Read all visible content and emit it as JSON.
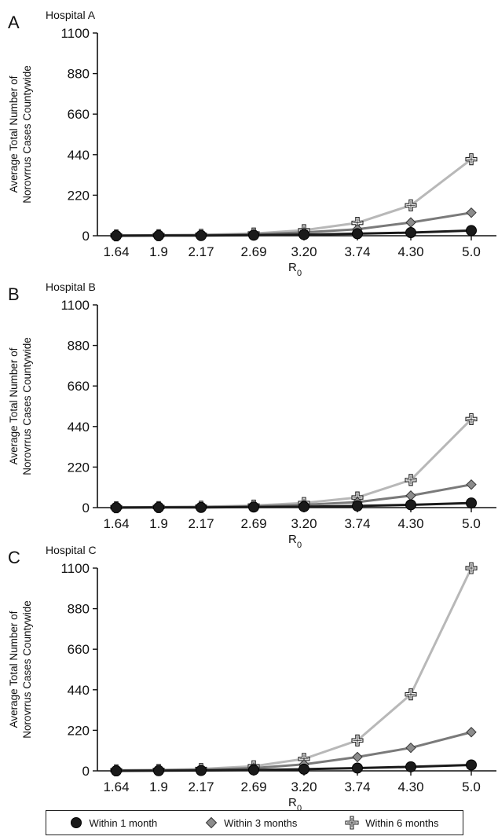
{
  "chart_data": [
    {
      "type": "line",
      "panel_letter": "A",
      "title": "Hospital A",
      "xlabel_main": "R",
      "xlabel_sub": "0",
      "ylabel": [
        "Average Total Number of",
        "Norovrrus Cases Countywide"
      ],
      "categories": [
        "1.64",
        "1.9",
        "2.17",
        "2.69",
        "3.20",
        "3.74",
        "4.30",
        "5.0"
      ],
      "ylim": [
        0,
        1100
      ],
      "yticks": [
        "0",
        "220",
        "440",
        "660",
        "880",
        "1100"
      ],
      "grid": false,
      "series": [
        {
          "name": "Within 6 months",
          "marker": "cross",
          "color": "#b8b8b8",
          "values": [
            2,
            3,
            5,
            12,
            30,
            70,
            165,
            415
          ]
        },
        {
          "name": "Within 3 months",
          "marker": "diamond",
          "color": "#7a7a7a",
          "values": [
            1,
            2,
            3,
            8,
            18,
            35,
            72,
            125
          ]
        },
        {
          "name": "Within 1 month",
          "marker": "circle",
          "color": "#1a1a1a",
          "values": [
            0,
            1,
            1,
            3,
            6,
            11,
            17,
            28
          ]
        }
      ]
    },
    {
      "type": "line",
      "panel_letter": "B",
      "title": "Hospital B",
      "xlabel_main": "R",
      "xlabel_sub": "0",
      "ylabel": [
        "Average Total Number of",
        "Norovrrus Cases Countywide"
      ],
      "categories": [
        "1.64",
        "1.9",
        "2.17",
        "2.69",
        "3.20",
        "3.74",
        "4.30",
        "5.0"
      ],
      "ylim": [
        0,
        1100
      ],
      "yticks": [
        "0",
        "220",
        "440",
        "660",
        "880",
        "1100"
      ],
      "grid": false,
      "series": [
        {
          "name": "Within 6 months",
          "marker": "cross",
          "color": "#b8b8b8",
          "values": [
            2,
            3,
            5,
            11,
            25,
            55,
            150,
            480
          ]
        },
        {
          "name": "Within 3 months",
          "marker": "diamond",
          "color": "#7a7a7a",
          "values": [
            1,
            2,
            3,
            7,
            15,
            30,
            65,
            125
          ]
        },
        {
          "name": "Within 1 month",
          "marker": "circle",
          "color": "#1a1a1a",
          "values": [
            0,
            1,
            1,
            3,
            5,
            9,
            15,
            25
          ]
        }
      ]
    },
    {
      "type": "line",
      "panel_letter": "C",
      "title": "Hospital C",
      "xlabel_main": "R",
      "xlabel_sub": "0",
      "ylabel": [
        "Average Total Number of",
        "Norovrrus Cases Countywide"
      ],
      "categories": [
        "1.64",
        "1.9",
        "2.17",
        "2.69",
        "3.20",
        "3.74",
        "4.30",
        "5.0"
      ],
      "ylim": [
        0,
        1100
      ],
      "yticks": [
        "0",
        "220",
        "440",
        "660",
        "880",
        "1100"
      ],
      "grid": false,
      "series": [
        {
          "name": "Within 6 months",
          "marker": "cross",
          "color": "#b8b8b8",
          "values": [
            3,
            5,
            10,
            25,
            65,
            165,
            415,
            1100
          ]
        },
        {
          "name": "Within 3 months",
          "marker": "diamond",
          "color": "#7a7a7a",
          "values": [
            2,
            3,
            6,
            15,
            35,
            75,
            125,
            210
          ]
        },
        {
          "name": "Within 1 month",
          "marker": "circle",
          "color": "#1a1a1a",
          "values": [
            0,
            1,
            2,
            5,
            9,
            15,
            22,
            32
          ]
        }
      ]
    }
  ],
  "legend": {
    "placement": "bottom",
    "items": [
      {
        "label": "Within 1 month",
        "marker": "circle",
        "color": "#1a1a1a"
      },
      {
        "label": "Within 3 months",
        "marker": "diamond",
        "color": "#7a7a7a"
      },
      {
        "label": "Within 6 months",
        "marker": "cross",
        "color": "#b8b8b8"
      }
    ]
  }
}
